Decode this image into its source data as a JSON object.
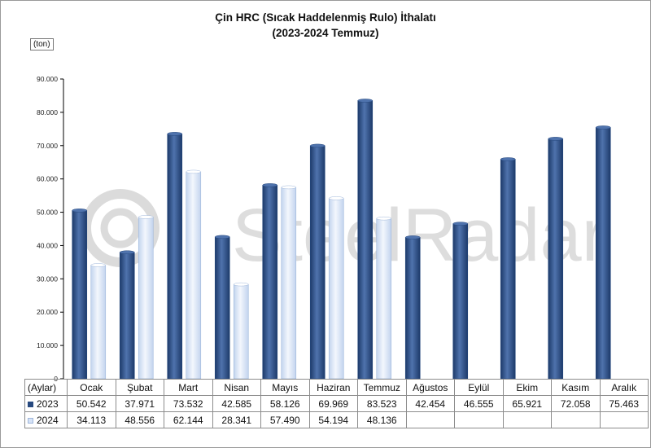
{
  "title_line1": "Çin HRC (Sıcak Haddelenmiş Rulo) İthalatı",
  "title_line2": "(2023-2024 Temmuz)",
  "unit_label": "(ton)",
  "table_header_label": "(Aylar)",
  "watermark_text": "SteelRadar",
  "colors": {
    "series_2023": "#27497f",
    "series_2023_light": "#4f73ad",
    "series_2024": "#d6e3f7",
    "series_2024_edge": "#9fb7db",
    "grid_axis": "#000000"
  },
  "chart_data": {
    "type": "bar",
    "title": "Çin HRC (Sıcak Haddelenmiş Rulo) İthalatı (2023-2024 Temmuz)",
    "ylabel": "(ton)",
    "xlabel": "(Aylar)",
    "ylim": [
      0,
      90000
    ],
    "yticks": [
      "0",
      "10.000",
      "20.000",
      "30.000",
      "40.000",
      "50.000",
      "60.000",
      "70.000",
      "80.000",
      "90.000"
    ],
    "grid": false,
    "legend": "data-table",
    "categories": [
      "Ocak",
      "Şubat",
      "Mart",
      "Nisan",
      "Mayıs",
      "Haziran",
      "Temmuz",
      "Ağustos",
      "Eylül",
      "Ekim",
      "Kasım",
      "Aralık"
    ],
    "series": [
      {
        "name": "2023",
        "values": [
          50542,
          37971,
          73532,
          42585,
          58126,
          69969,
          83523,
          42454,
          46555,
          65921,
          72058,
          75463
        ],
        "labels": [
          "50.542",
          "37.971",
          "73.532",
          "42.585",
          "58.126",
          "69.969",
          "83.523",
          "42.454",
          "46.555",
          "65.921",
          "72.058",
          "75.463"
        ]
      },
      {
        "name": "2024",
        "values": [
          34113,
          48556,
          62144,
          28341,
          57490,
          54194,
          48136,
          null,
          null,
          null,
          null,
          null
        ],
        "labels": [
          "34.113",
          "48.556",
          "62.144",
          "28.341",
          "57.490",
          "54.194",
          "48.136",
          "",
          "",
          "",
          "",
          ""
        ]
      }
    ]
  }
}
